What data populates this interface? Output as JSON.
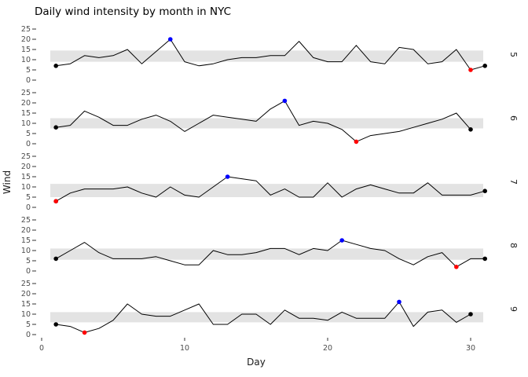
{
  "chart_data": {
    "type": "line",
    "title": "Daily wind intensity by month in NYC",
    "xlabel": "Day",
    "ylabel": "Wind",
    "x_ticks": [
      0,
      10,
      20,
      30
    ],
    "y_ticks": [
      25,
      20,
      15,
      10,
      5,
      0
    ],
    "x_range_days": [
      1,
      31
    ],
    "ylim": [
      0,
      25
    ],
    "grid": false,
    "legend": "none",
    "facet_labels_position": "right",
    "point_rules": {
      "first_and_last_day": "black point",
      "monthly_max": "blue point",
      "monthly_min": "red point",
      "band": "gray horizontal band per month"
    },
    "colors": {
      "line": "#000000",
      "endpoint": "#000000",
      "max_point": "#0000ff",
      "min_point": "#ff0000",
      "band": "#e3e3e3",
      "axis_text": "#4d4d4d",
      "tick_mark": "#333333",
      "strip_text": "#1a1a1a",
      "title_text": "#000000",
      "background": "#ffffff"
    },
    "facets": [
      {
        "label": "5",
        "values": [
          7,
          8,
          12,
          11,
          12,
          15,
          8,
          14,
          20,
          9,
          7,
          8,
          10,
          11,
          11,
          12,
          12,
          19,
          11,
          9,
          9,
          17,
          9,
          8,
          16,
          15,
          8,
          9,
          15,
          5,
          7
        ],
        "band": [
          9,
          14.5
        ],
        "max_day": 9,
        "min_day": 30
      },
      {
        "label": "6",
        "values": [
          8,
          9,
          16,
          13,
          9,
          9,
          12,
          14,
          11,
          6,
          10,
          14,
          13,
          12,
          11,
          17,
          21,
          9,
          11,
          10,
          7,
          1,
          4,
          5,
          6,
          8,
          10,
          12,
          15,
          7
        ],
        "band": [
          7.5,
          12.5
        ],
        "max_day": 17,
        "min_day": 22
      },
      {
        "label": "7",
        "values": [
          3,
          7,
          9,
          9,
          9,
          10,
          7,
          5,
          10,
          6,
          5,
          10,
          15,
          14,
          13,
          6,
          9,
          5,
          5,
          12,
          5,
          9,
          11,
          9,
          7,
          7,
          12,
          6,
          6,
          6,
          8
        ],
        "band": [
          5,
          11.5
        ],
        "max_day": 13,
        "min_day": 1
      },
      {
        "label": "8",
        "values": [
          6,
          10,
          14,
          9,
          6,
          6,
          6,
          7,
          5,
          3,
          3,
          10,
          8,
          8,
          9,
          11,
          11,
          8,
          11,
          10,
          15,
          13,
          11,
          10,
          6,
          3,
          7,
          9,
          2,
          6,
          6
        ],
        "band": [
          5.5,
          11
        ],
        "max_day": 21,
        "min_day": 29
      },
      {
        "label": "9",
        "values": [
          5,
          4,
          1,
          3,
          7,
          15,
          10,
          9,
          9,
          12,
          15,
          5,
          5,
          10,
          10,
          5,
          12,
          8,
          8,
          7,
          11,
          8,
          8,
          8,
          16,
          4,
          11,
          12,
          6,
          10
        ],
        "band": [
          6,
          11
        ],
        "max_day": 25,
        "min_day": 3
      }
    ]
  }
}
